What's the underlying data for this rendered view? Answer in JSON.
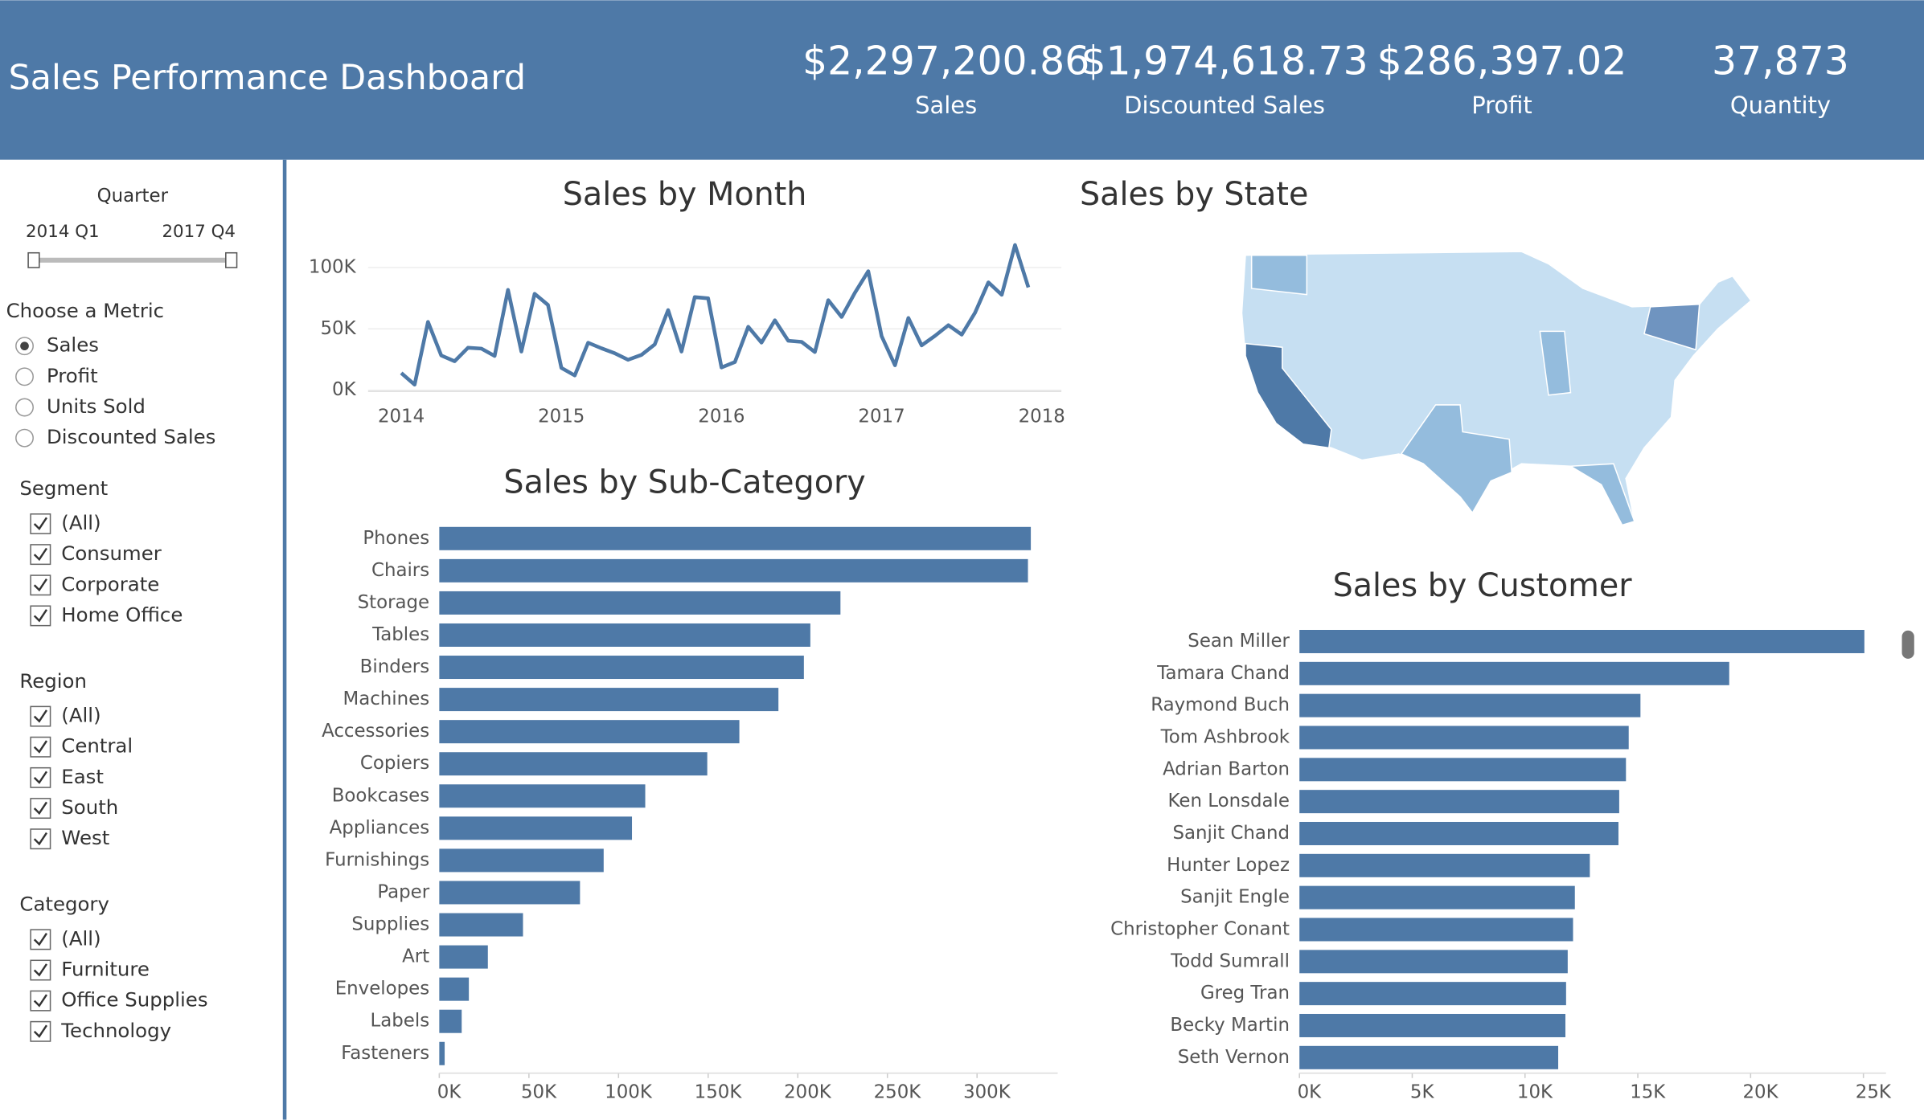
{
  "header": {
    "title": "Sales Performance Dashboard",
    "kpis": [
      {
        "value": "$2,297,200.86",
        "label": "Sales"
      },
      {
        "value": "$1,974,618.73",
        "label": "Discounted Sales"
      },
      {
        "value": "$286,397.02",
        "label": "Profit"
      },
      {
        "value": "37,873",
        "label": "Quantity"
      }
    ]
  },
  "sidebar": {
    "quarter": {
      "title": "Quarter",
      "start": "2014 Q1",
      "end": "2017 Q4"
    },
    "metric": {
      "title": "Choose a Metric",
      "options": [
        "Sales",
        "Profit",
        "Units Sold",
        "Discounted Sales"
      ],
      "selected": 0
    },
    "filters": [
      {
        "title": "Segment",
        "options": [
          "(All)",
          "Consumer",
          "Corporate",
          "Home Office"
        ]
      },
      {
        "title": "Region",
        "options": [
          "(All)",
          "Central",
          "East",
          "South",
          "West"
        ]
      },
      {
        "title": "Category",
        "options": [
          "(All)",
          "Furniture",
          "Office Supplies",
          "Technology"
        ]
      }
    ]
  },
  "chart_data": [
    {
      "type": "line",
      "title": "Sales by Month",
      "color": "#4e79a7",
      "x": [
        2014,
        2014.0833,
        2014.1667,
        2014.25,
        2014.3333,
        2014.4167,
        2014.5,
        2014.5833,
        2014.6667,
        2014.75,
        2014.8333,
        2014.9167,
        2015,
        2015.0833,
        2015.1667,
        2015.25,
        2015.3333,
        2015.4167,
        2015.5,
        2015.5833,
        2015.6667,
        2015.75,
        2015.8333,
        2015.9167,
        2016,
        2016.0833,
        2016.1667,
        2016.25,
        2016.3333,
        2016.4167,
        2016.5,
        2016.5833,
        2016.6667,
        2016.75,
        2016.8333,
        2016.9167,
        2017,
        2017.0833,
        2017.1667,
        2017.25,
        2017.3333,
        2017.4167,
        2017.5,
        2017.5833,
        2017.6667,
        2017.75,
        2017.8333,
        2017.9167
      ],
      "values": [
        14000,
        4500,
        55700,
        28300,
        23600,
        34600,
        33900,
        27900,
        81800,
        31500,
        78600,
        69500,
        18200,
        12000,
        38700,
        34200,
        30100,
        24800,
        28800,
        37300,
        65300,
        31500,
        75900,
        74900,
        18500,
        22900,
        51700,
        38800,
        57000,
        40300,
        39400,
        31100,
        73400,
        59700,
        79400,
        97000,
        44000,
        20300,
        58900,
        36500,
        44300,
        53000,
        45300,
        63100,
        87900,
        77800,
        118400,
        83800
      ],
      "xlim": [
        2014,
        2018
      ],
      "xticks": [
        2014,
        2015,
        2016,
        2017,
        2018
      ],
      "ylim": [
        0,
        120000
      ],
      "yticks": [
        {
          "value": 0,
          "label": "0K"
        },
        {
          "value": 50000,
          "label": "50K"
        },
        {
          "value": 100000,
          "label": "100K"
        }
      ],
      "grid": true
    },
    {
      "type": "bar",
      "title": "Sales by Sub-Category",
      "color": "#4e79a7",
      "categories": [
        "Phones",
        "Chairs",
        "Storage",
        "Tables",
        "Binders",
        "Machines",
        "Accessories",
        "Copiers",
        "Bookcases",
        "Appliances",
        "Furnishings",
        "Paper",
        "Supplies",
        "Art",
        "Envelopes",
        "Labels",
        "Fasteners"
      ],
      "values": [
        330000,
        328400,
        223800,
        207000,
        203400,
        189200,
        167400,
        149500,
        114900,
        107500,
        91700,
        78500,
        46700,
        27100,
        16500,
        12500,
        3000
      ],
      "xlim": [
        0,
        345000
      ],
      "xticks": [
        {
          "value": 0,
          "label": "0K"
        },
        {
          "value": 50000,
          "label": "50K"
        },
        {
          "value": 100000,
          "label": "100K"
        },
        {
          "value": 150000,
          "label": "150K"
        },
        {
          "value": 200000,
          "label": "200K"
        },
        {
          "value": 250000,
          "label": "250K"
        },
        {
          "value": 300000,
          "label": "300K"
        }
      ]
    },
    {
      "type": "map",
      "title": "Sales by State"
    },
    {
      "type": "bar",
      "title": "Sales by Customer",
      "color": "#4e79a7",
      "categories": [
        "Sean Miller",
        "Tamara Chand",
        "Raymond Buch",
        "Tom Ashbrook",
        "Adrian Barton",
        "Ken Lonsdale",
        "Sanjit Chand",
        "Hunter Lopez",
        "Sanjit Engle",
        "Christopher Conant",
        "Todd Sumrall",
        "Greg Tran",
        "Becky Martin",
        "Seth Vernon"
      ],
      "values": [
        25043,
        19052,
        15117,
        14596,
        14474,
        14175,
        14142,
        12873,
        12209,
        12129,
        11892,
        11820,
        11790,
        11471
      ],
      "xlim": [
        0,
        26000
      ],
      "xticks": [
        {
          "value": 0,
          "label": "0K"
        },
        {
          "value": 5000,
          "label": "5K"
        },
        {
          "value": 10000,
          "label": "10K"
        },
        {
          "value": 15000,
          "label": "15K"
        },
        {
          "value": 20000,
          "label": "20K"
        },
        {
          "value": 25000,
          "label": "25K"
        }
      ]
    }
  ]
}
